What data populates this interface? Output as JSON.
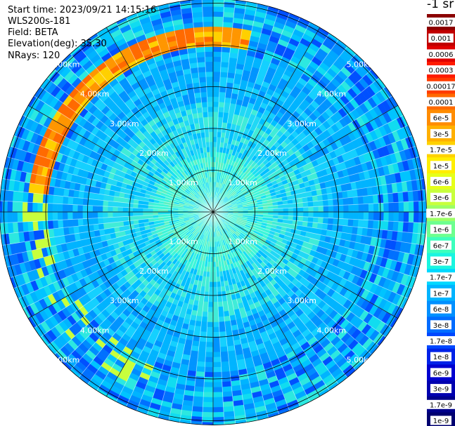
{
  "info": {
    "start_time": "Start time: 2023/09/21 14:15:16",
    "instrument": "WLS200s-181",
    "field": "Field: BETA",
    "elevation": "Elevation(deg): 35.30",
    "nrays": "NRays: 120"
  },
  "colorbar": {
    "unit_label": "-1 sr",
    "labels": [
      "0.0017",
      "0.001",
      "0.0006",
      "0.0003",
      "0.00017",
      "0.0001",
      "6e-5",
      "3e-5",
      "1.7e-5",
      "1e-5",
      "6e-6",
      "3e-6",
      "1.7e-6",
      "1e-6",
      "6e-7",
      "3e-7",
      "1.7e-7",
      "1e-7",
      "6e-8",
      "3e-8",
      "1.7e-8",
      "1e-8",
      "6e-9",
      "3e-9",
      "1.7e-9",
      "1e-9"
    ],
    "colors": [
      "#8b0000",
      "#c00000",
      "#e00000",
      "#ff1a00",
      "#ff3c00",
      "#ff6a00",
      "#ff8c00",
      "#ffb000",
      "#ffd200",
      "#ffee00",
      "#e6ff1a",
      "#c8ff3c",
      "#9cff66",
      "#6dff8f",
      "#3dffbd",
      "#1af5e0",
      "#00d8ff",
      "#00b4ff",
      "#0090ff",
      "#006cff",
      "#0048ff",
      "#0022e8",
      "#0000d0",
      "#0000b0",
      "#00008c",
      "#000070"
    ]
  },
  "chart_data": {
    "type": "heatmap",
    "projection": "polar PPI",
    "field": "BETA",
    "elevation_deg": 35.3,
    "n_rays": 120,
    "range_rings_km": [
      1,
      2,
      3,
      4,
      5
    ],
    "ring_labels": [
      "1.00km",
      "2.00km",
      "3.00km",
      "4.00km",
      "5.00km"
    ],
    "max_range_km": 5.1,
    "spoke_step_deg": 30,
    "scale": "log",
    "colorbar_range": [
      1e-09,
      0.0017
    ],
    "features": [
      {
        "description": "enhanced backscatter arc",
        "azimuth_range_deg": [
          -85,
          10
        ],
        "range_km": [
          4.0,
          4.4
        ],
        "level": "3e-5 to 1e-4"
      },
      {
        "description": "near-field enhanced backscatter",
        "range_km": [
          0,
          1.4
        ],
        "level": "1e-7 to 3e-7"
      }
    ]
  }
}
